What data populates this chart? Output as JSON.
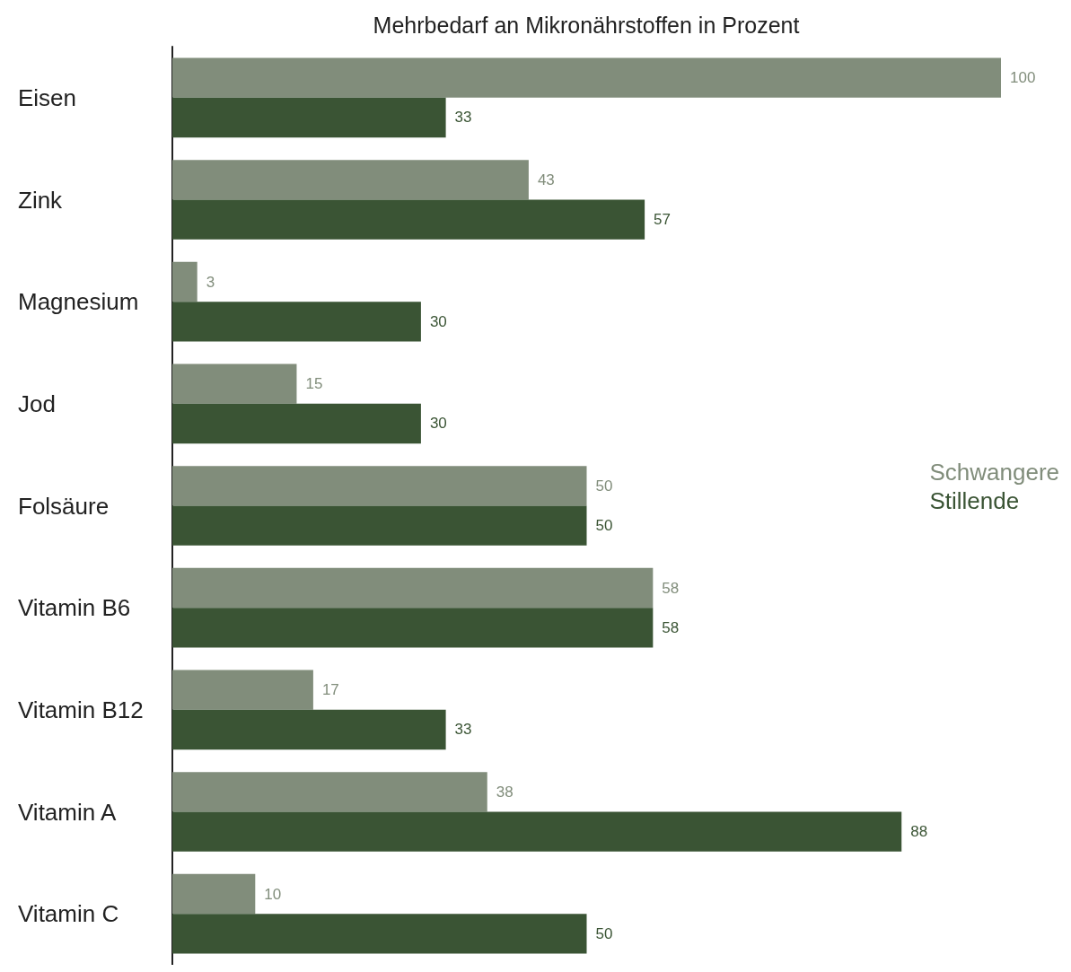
{
  "chart_data": {
    "type": "bar",
    "orientation": "horizontal",
    "title": "Mehrbedarf an Mikronährstoffen in Prozent",
    "categories": [
      "Eisen",
      "Zink",
      "Magnesium",
      "Jod",
      "Folsäure",
      "Vitamin B6",
      "Vitamin B12",
      "Vitamin A",
      "Vitamin C"
    ],
    "series": [
      {
        "name": "Schwangere",
        "color": "#818d7b",
        "values": [
          100,
          43,
          3,
          15,
          50,
          58,
          17,
          38,
          10
        ]
      },
      {
        "name": "Stillende",
        "color": "#3a5434",
        "values": [
          33,
          57,
          30,
          30,
          50,
          58,
          33,
          88,
          50
        ]
      }
    ],
    "data_labels": true,
    "legend": "right",
    "grid": false,
    "tick_labels": "y"
  }
}
